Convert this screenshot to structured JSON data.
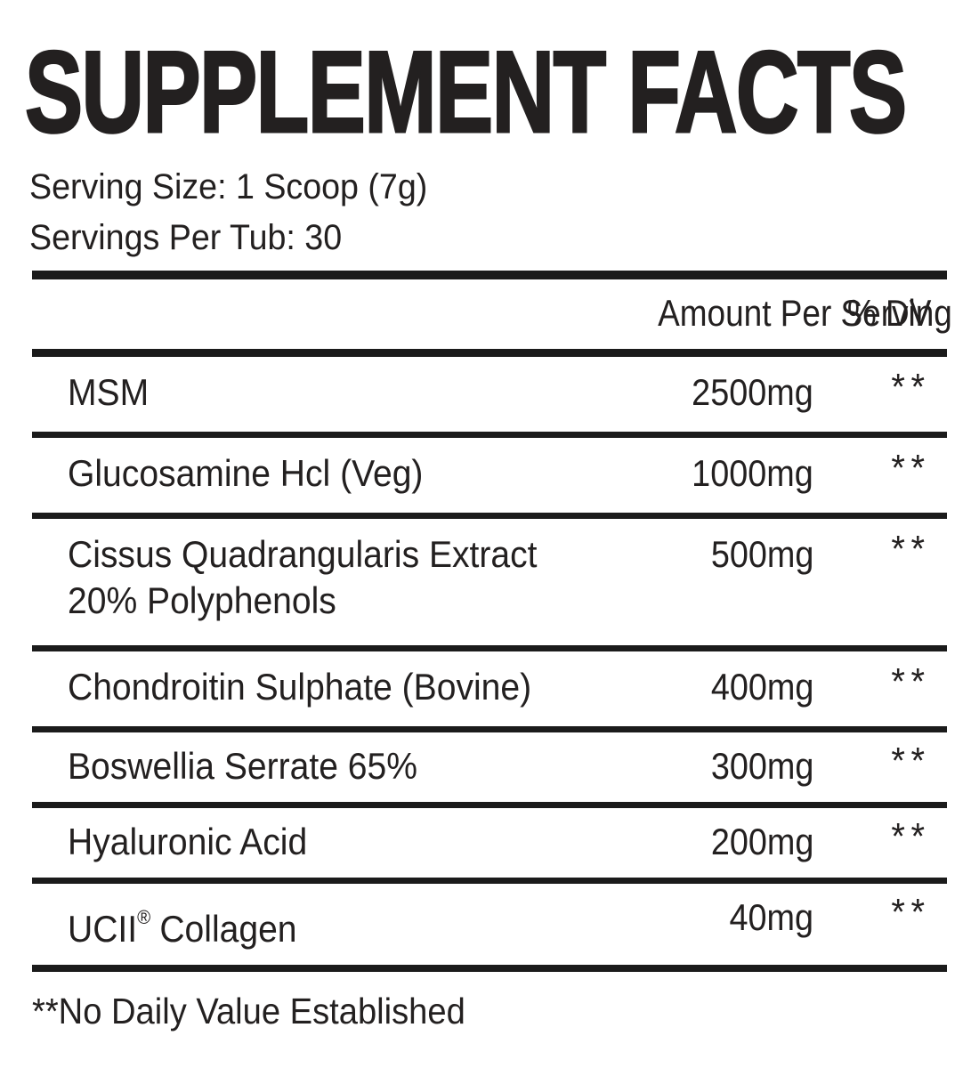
{
  "panel": {
    "title": "SUPPLEMENT FACTS",
    "serving": {
      "size_line": "Serving Size: 1 Scoop (7g)",
      "per_tub_line": "Servings Per Tub: 30"
    },
    "table": {
      "header": {
        "amount": "Amount Per Serving",
        "dv": "% DV"
      },
      "rows": [
        {
          "name": "MSM",
          "amount": "2500mg",
          "dv": "**"
        },
        {
          "name": "Glucosamine Hcl (Veg)",
          "amount": "1000mg",
          "dv": "**"
        },
        {
          "name": "Cissus Quadrangularis Extract",
          "name_line2": "20% Polyphenols",
          "amount": "500mg",
          "dv": "**"
        },
        {
          "name": "Chondroitin Sulphate (Bovine)",
          "amount": "400mg",
          "dv": "**"
        },
        {
          "name": "Boswellia Serrate 65%",
          "amount": "300mg",
          "dv": "**"
        },
        {
          "name": "Hyaluronic Acid",
          "amount": "200mg",
          "dv": "**"
        },
        {
          "name_pre": "UCII",
          "registered_symbol": "®",
          "name_post": "Collagen",
          "amount": "40mg",
          "dv": "**"
        }
      ]
    },
    "footnote": "**No Daily Value Established",
    "colors": {
      "text": "#232020",
      "rule": "#1b1b1b",
      "background": "#ffffff"
    }
  }
}
